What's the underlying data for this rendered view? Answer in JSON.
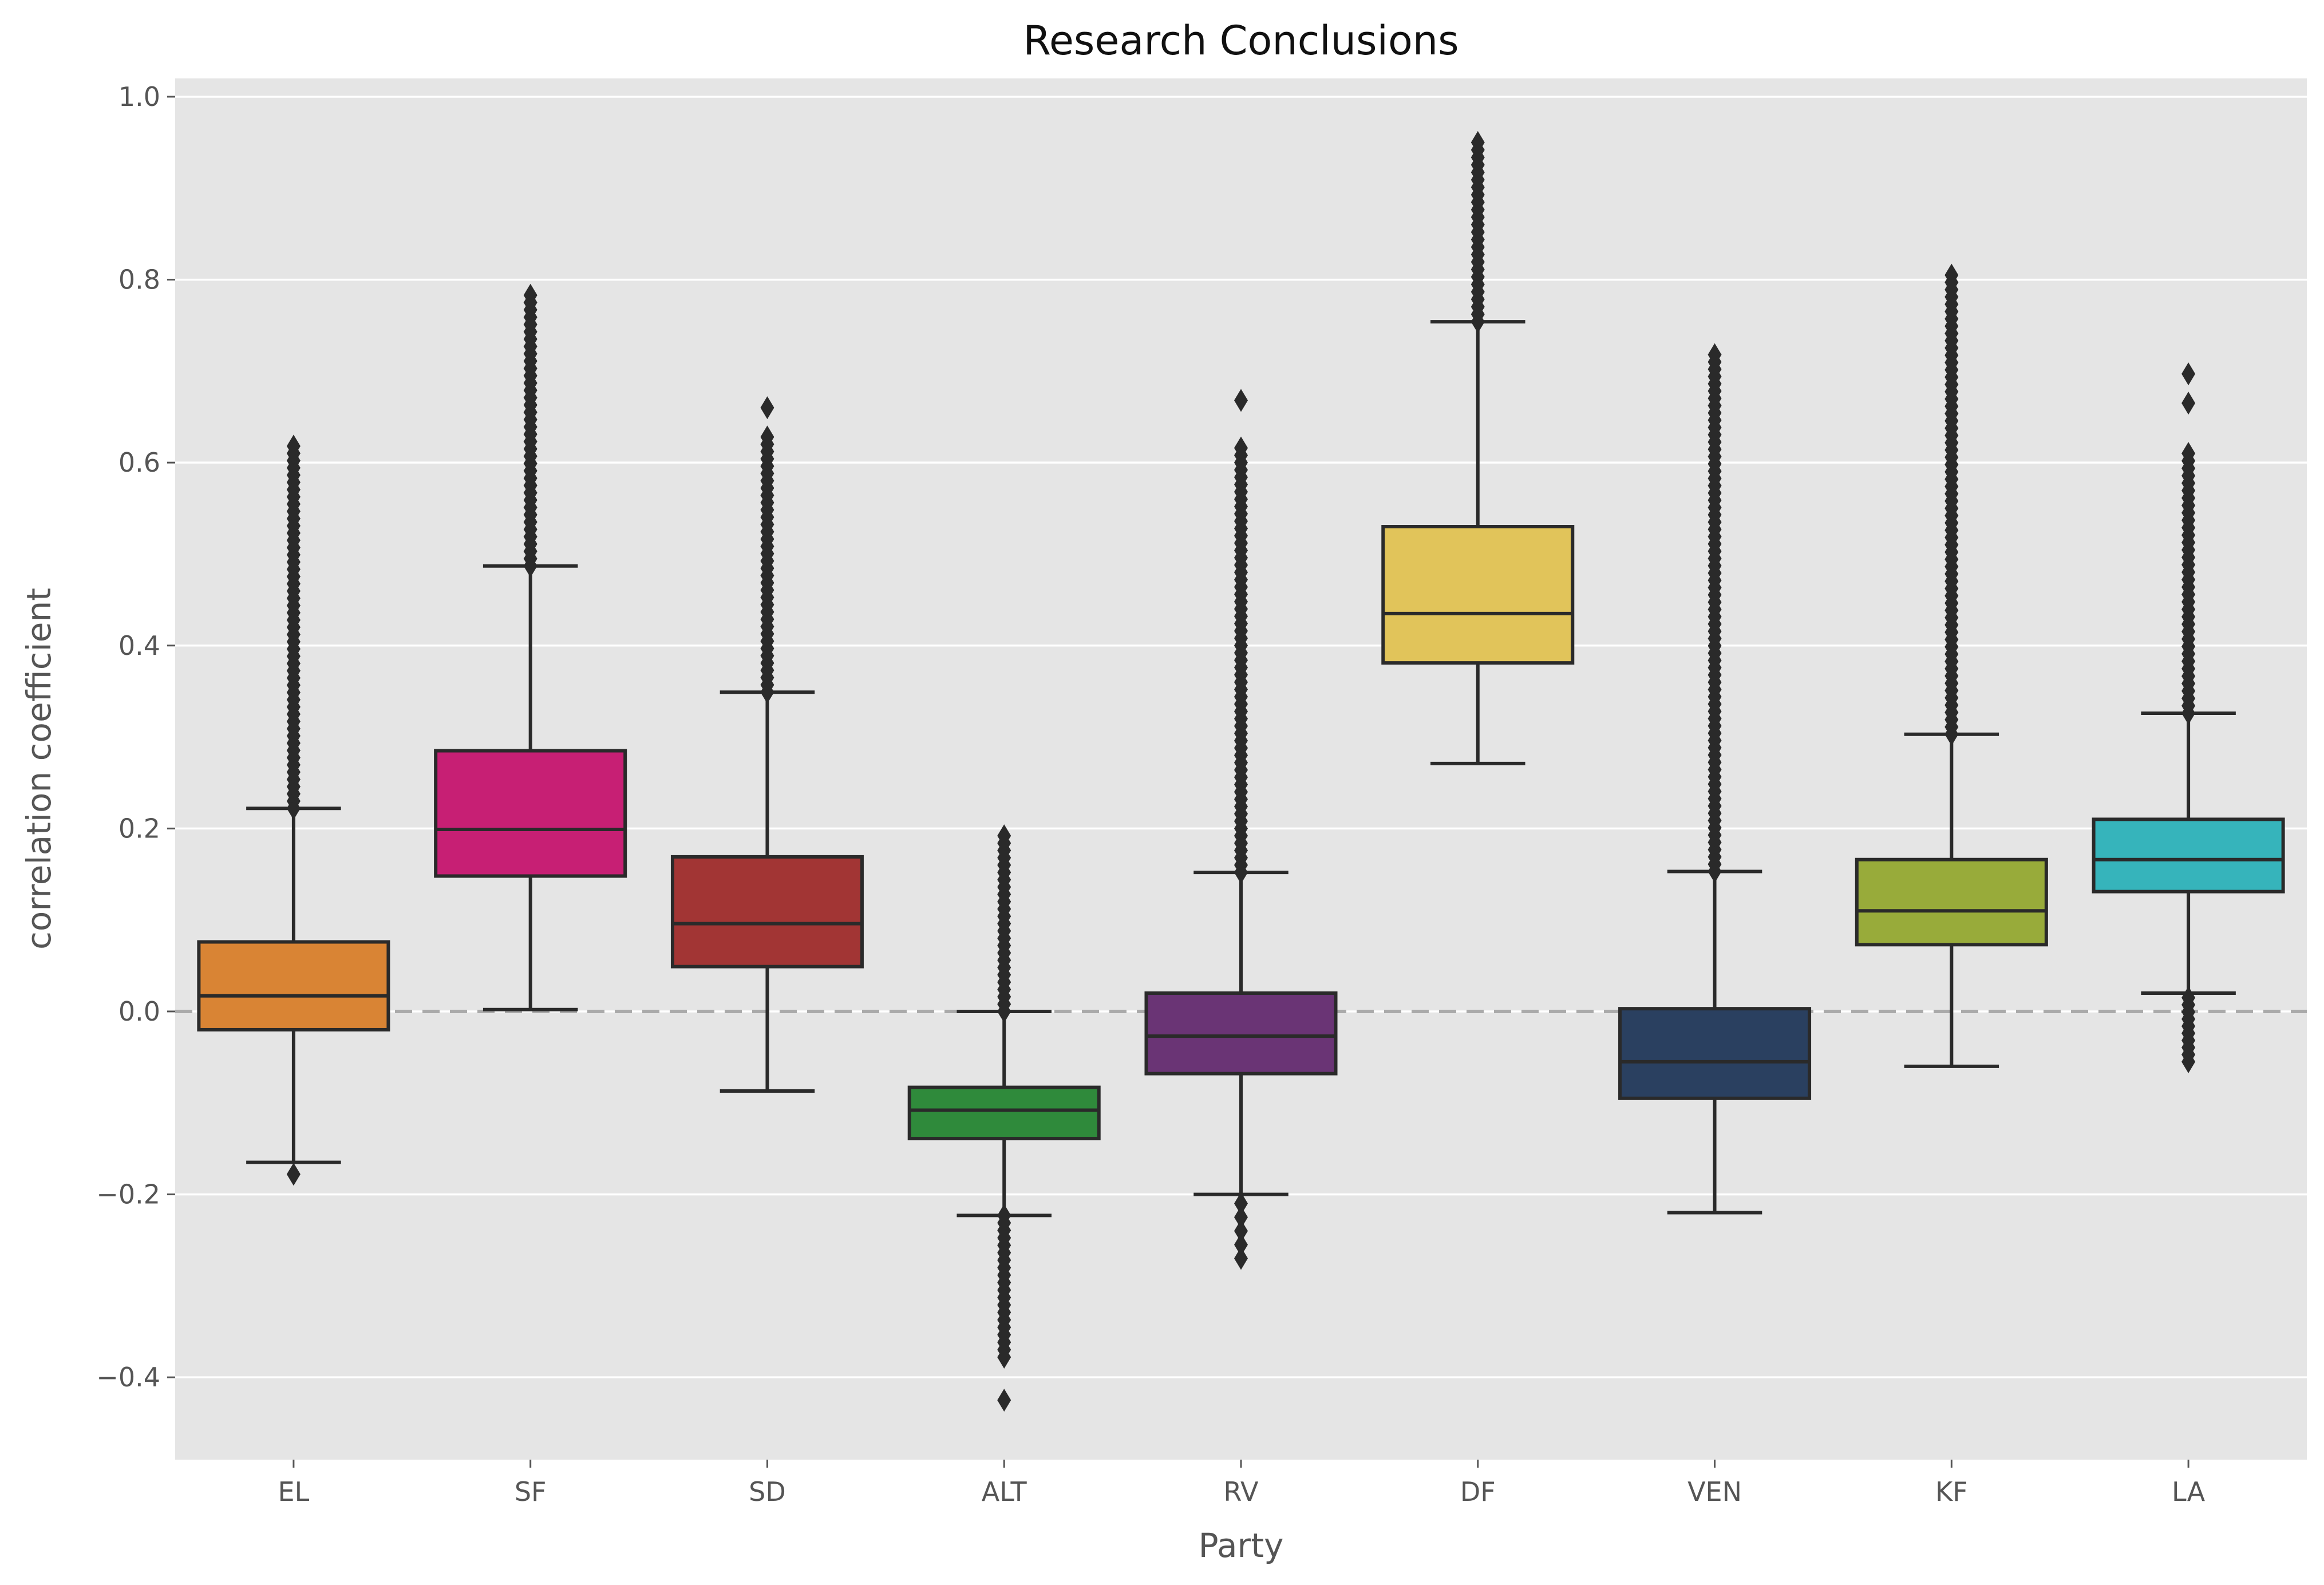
{
  "chart_data": {
    "type": "box",
    "title": "Research Conclusions",
    "xlabel": "Party",
    "ylabel": "correlation coefficient",
    "ylim": [
      -0.49,
      1.02
    ],
    "yticks": [
      -0.4,
      -0.2,
      0.0,
      0.2,
      0.4,
      0.6,
      0.8,
      1.0
    ],
    "ytick_labels": [
      "−0.4",
      "−0.2",
      "0.0",
      "0.2",
      "0.4",
      "0.6",
      "0.8",
      "1.0"
    ],
    "grid": true,
    "reference_line": {
      "y": 0.0,
      "style": "dashed",
      "color": "#aaaaaa"
    },
    "categories": [
      "EL",
      "SF",
      "SD",
      "ALT",
      "RV",
      "DF",
      "VEN",
      "KF",
      "LA"
    ],
    "colors": [
      "#d98434",
      "#c71f74",
      "#a23534",
      "#2f8a3b",
      "#6a3475",
      "#e1c45a",
      "#2a4060",
      "#98ab3a",
      "#36b4bb"
    ],
    "boxes": [
      {
        "category": "EL",
        "whisker_low": -0.165,
        "q1": -0.02,
        "median": 0.017,
        "q3": 0.076,
        "whisker_high": 0.222,
        "outliers_low": [
          -0.178
        ],
        "outliers_high_range": [
          0.222,
          0.618
        ]
      },
      {
        "category": "SF",
        "whisker_low": 0.002,
        "q1": 0.148,
        "median": 0.199,
        "q3": 0.285,
        "whisker_high": 0.487,
        "outliers_low": [],
        "outliers_high_range": [
          0.487,
          0.783
        ]
      },
      {
        "category": "SD",
        "whisker_low": -0.087,
        "q1": 0.049,
        "median": 0.096,
        "q3": 0.169,
        "whisker_high": 0.349,
        "outliers_low": [],
        "outliers_high_range": [
          0.349,
          0.628
        ],
        "outliers_high_extra": [
          0.66
        ]
      },
      {
        "category": "ALT",
        "whisker_low": -0.223,
        "q1": -0.139,
        "median": -0.108,
        "q3": -0.083,
        "whisker_high": 0.0,
        "outliers_low_range": [
          -0.378,
          -0.223
        ],
        "outliers_low_extra": [
          -0.425
        ],
        "outliers_high_range": [
          0.0,
          0.192
        ]
      },
      {
        "category": "RV",
        "whisker_low": -0.2,
        "q1": -0.068,
        "median": -0.027,
        "q3": 0.02,
        "whisker_high": 0.152,
        "outliers_low": [
          -0.21,
          -0.225,
          -0.24,
          -0.255,
          -0.27
        ],
        "outliers_high_range": [
          0.152,
          0.616
        ],
        "outliers_high_extra": [
          0.668
        ]
      },
      {
        "category": "DF",
        "whisker_low": 0.271,
        "q1": 0.381,
        "median": 0.435,
        "q3": 0.53,
        "whisker_high": 0.754,
        "outliers_low": [],
        "outliers_high_range": [
          0.754,
          0.95
        ]
      },
      {
        "category": "VEN",
        "whisker_low": -0.22,
        "q1": -0.095,
        "median": -0.055,
        "q3": 0.003,
        "whisker_high": 0.153,
        "outliers_low": [],
        "outliers_high_range": [
          0.153,
          0.718
        ]
      },
      {
        "category": "KF",
        "whisker_low": -0.06,
        "q1": 0.073,
        "median": 0.11,
        "q3": 0.166,
        "whisker_high": 0.303,
        "outliers_low": [],
        "outliers_high_range": [
          0.303,
          0.805
        ]
      },
      {
        "category": "LA",
        "whisker_low": 0.02,
        "q1": 0.131,
        "median": 0.166,
        "q3": 0.21,
        "whisker_high": 0.326,
        "outliers_low_range": [
          -0.055,
          0.015
        ],
        "outliers_high_range": [
          0.326,
          0.61
        ],
        "outliers_high_extra": [
          0.665,
          0.697
        ]
      }
    ]
  }
}
